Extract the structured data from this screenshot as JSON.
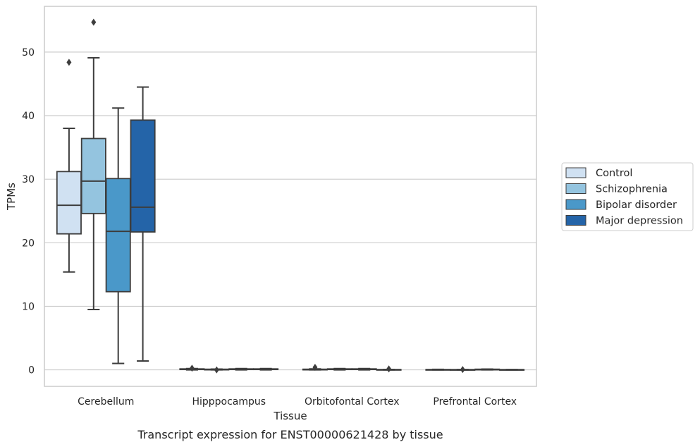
{
  "chart_data": {
    "type": "box",
    "caption": "Transcript expression for ENST00000621428 by tissue",
    "xlabel": "Tissue",
    "ylabel": "TPMs",
    "ylim": [
      -2.6,
      57.2
    ],
    "yticks": [
      0,
      10,
      20,
      30,
      40,
      50
    ],
    "grid": "horizontal",
    "legend_position": "right",
    "categories": [
      "Cerebellum",
      "Hipppocampus",
      "Orbitofontal Cortex",
      "Prefrontal Cortex"
    ],
    "series": [
      {
        "name": "Control",
        "color": "#d0e1f2",
        "boxes": [
          {
            "q1": 21.4,
            "median": 25.9,
            "q3": 31.2,
            "whisker_low": 15.4,
            "whisker_high": 38.0,
            "outliers": [
              48.4
            ]
          },
          {
            "q1": 0.05,
            "median": 0.1,
            "q3": 0.15,
            "whisker_low": 0.0,
            "whisker_high": 0.2,
            "outliers": [
              0.25
            ]
          },
          {
            "q1": 0.0,
            "median": 0.05,
            "q3": 0.1,
            "whisker_low": 0.0,
            "whisker_high": 0.15,
            "outliers": [
              0.4
            ]
          },
          {
            "q1": 0.0,
            "median": 0.02,
            "q3": 0.05,
            "whisker_low": 0.0,
            "whisker_high": 0.08,
            "outliers": []
          }
        ]
      },
      {
        "name": "Schizophrenia",
        "color": "#94c4df",
        "boxes": [
          {
            "q1": 24.6,
            "median": 29.7,
            "q3": 36.4,
            "whisker_low": 9.5,
            "whisker_high": 49.1,
            "outliers": [
              54.7
            ]
          },
          {
            "q1": 0.0,
            "median": 0.05,
            "q3": 0.1,
            "whisker_low": 0.0,
            "whisker_high": 0.12,
            "outliers": [
              0.0
            ]
          },
          {
            "q1": 0.05,
            "median": 0.1,
            "q3": 0.15,
            "whisker_low": 0.0,
            "whisker_high": 0.2,
            "outliers": []
          },
          {
            "q1": 0.0,
            "median": 0.02,
            "q3": 0.04,
            "whisker_low": 0.0,
            "whisker_high": 0.05,
            "outliers": [
              0.05
            ]
          }
        ]
      },
      {
        "name": "Bipolar disorder",
        "color": "#4a98c9",
        "boxes": [
          {
            "q1": 12.3,
            "median": 21.8,
            "q3": 30.1,
            "whisker_low": 1.0,
            "whisker_high": 41.2,
            "outliers": []
          },
          {
            "q1": 0.05,
            "median": 0.1,
            "q3": 0.15,
            "whisker_low": 0.0,
            "whisker_high": 0.2,
            "outliers": []
          },
          {
            "q1": 0.05,
            "median": 0.1,
            "q3": 0.15,
            "whisker_low": 0.0,
            "whisker_high": 0.2,
            "outliers": []
          },
          {
            "q1": 0.0,
            "median": 0.05,
            "q3": 0.1,
            "whisker_low": 0.0,
            "whisker_high": 0.12,
            "outliers": []
          }
        ]
      },
      {
        "name": "Major depression",
        "color": "#2464a8",
        "boxes": [
          {
            "q1": 21.7,
            "median": 25.6,
            "q3": 39.3,
            "whisker_low": 1.4,
            "whisker_high": 44.5,
            "outliers": []
          },
          {
            "q1": 0.05,
            "median": 0.1,
            "q3": 0.15,
            "whisker_low": 0.0,
            "whisker_high": 0.2,
            "outliers": []
          },
          {
            "q1": 0.0,
            "median": 0.02,
            "q3": 0.05,
            "whisker_low": 0.0,
            "whisker_high": 0.06,
            "outliers": [
              0.15
            ]
          },
          {
            "q1": 0.0,
            "median": 0.02,
            "q3": 0.04,
            "whisker_low": 0.0,
            "whisker_high": 0.05,
            "outliers": []
          }
        ]
      }
    ]
  }
}
